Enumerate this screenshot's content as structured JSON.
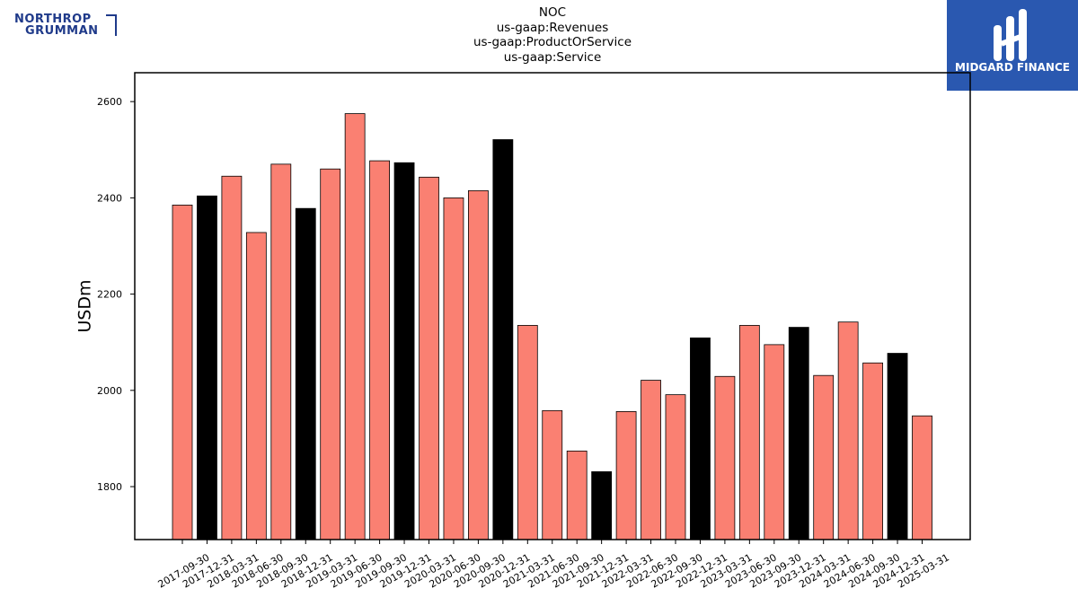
{
  "logos": {
    "left": {
      "line1": "NORTHROP",
      "line2": "GRUMMAN"
    },
    "right": {
      "text": "MIDGARD FINANCE",
      "bg_color": "#2a58b0"
    }
  },
  "chart_data": {
    "type": "bar",
    "title_lines": [
      "NOC",
      "us-gaap:Revenues",
      "us-gaap:ProductOrService",
      "us-gaap:Service"
    ],
    "xlabel": "",
    "ylabel": "USDm",
    "ylim": [
      1690,
      2660
    ],
    "yticks": [
      1800,
      2000,
      2200,
      2400,
      2600
    ],
    "categories": [
      "2017-09-30",
      "2017-12-31",
      "2018-03-31",
      "2018-06-30",
      "2018-09-30",
      "2018-12-31",
      "2019-03-31",
      "2019-06-30",
      "2019-09-30",
      "2019-12-31",
      "2020-03-31",
      "2020-06-30",
      "2020-09-30",
      "2020-12-31",
      "2021-03-31",
      "2021-06-30",
      "2021-09-30",
      "2021-12-31",
      "2022-03-31",
      "2022-06-30",
      "2022-09-30",
      "2022-12-31",
      "2023-03-31",
      "2023-06-30",
      "2023-09-30",
      "2023-12-31",
      "2024-03-31",
      "2024-06-30",
      "2024-09-30",
      "2024-12-31",
      "2025-03-31"
    ],
    "values": [
      2385,
      2404,
      2445,
      2328,
      2470,
      2378,
      2460,
      2575,
      2477,
      2473,
      2443,
      2400,
      2415,
      2521,
      2135,
      1958,
      1874,
      1831,
      1956,
      2021,
      1991,
      2109,
      2029,
      2135,
      2095,
      2131,
      2031,
      2142,
      2057,
      2077,
      1947
    ],
    "bar_colors": [
      "#fa8072",
      "#000000",
      "#fa8072",
      "#fa8072",
      "#fa8072",
      "#000000",
      "#fa8072",
      "#fa8072",
      "#fa8072",
      "#000000",
      "#fa8072",
      "#fa8072",
      "#fa8072",
      "#000000",
      "#fa8072",
      "#fa8072",
      "#fa8072",
      "#000000",
      "#fa8072",
      "#fa8072",
      "#fa8072",
      "#000000",
      "#fa8072",
      "#fa8072",
      "#fa8072",
      "#000000",
      "#fa8072",
      "#fa8072",
      "#fa8072",
      "#000000",
      "#fa8072"
    ],
    "grid": false,
    "legend": "none"
  }
}
